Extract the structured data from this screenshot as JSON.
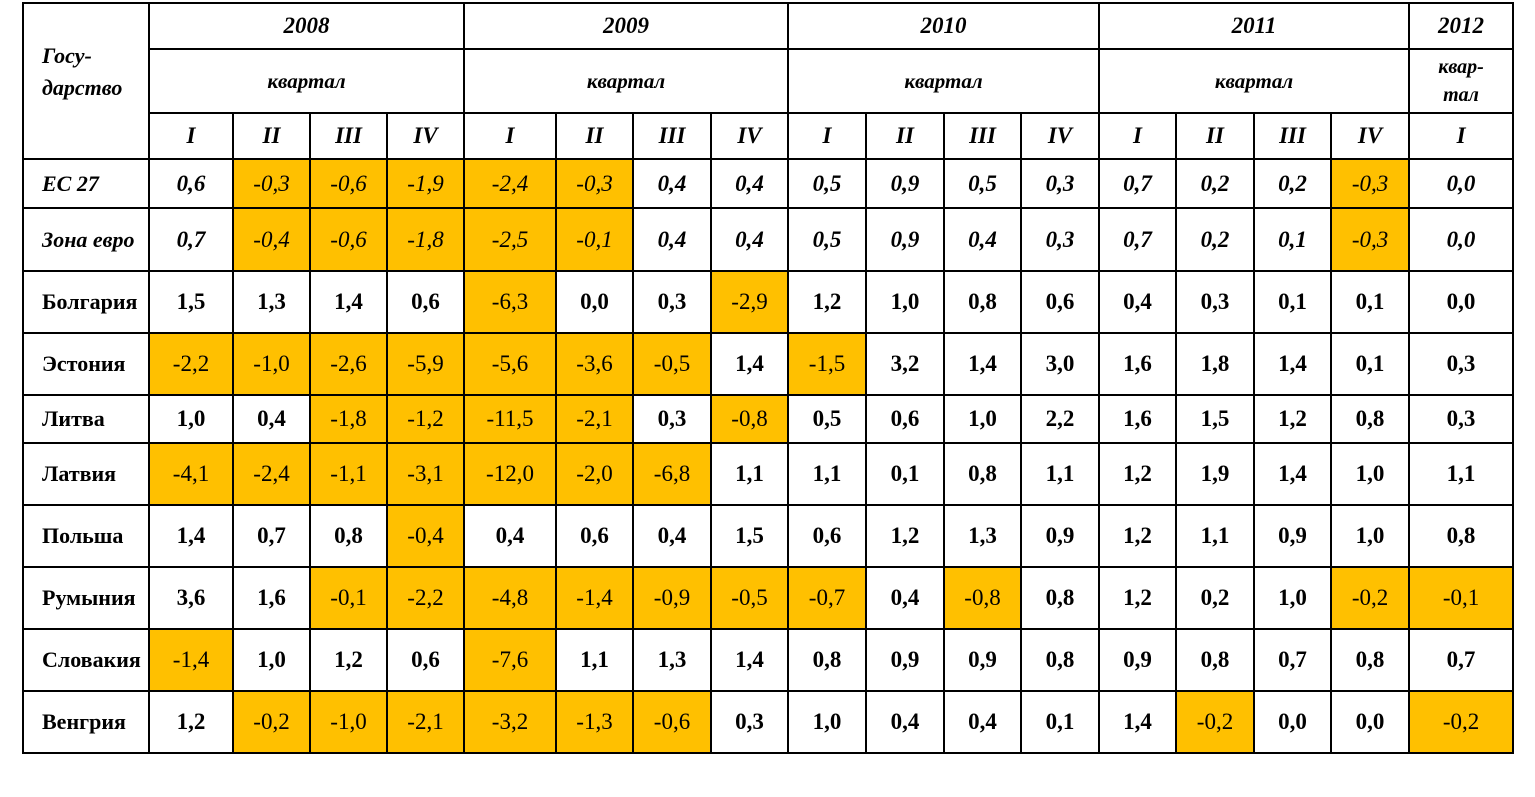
{
  "header": {
    "state_label": "Госу-дарство",
    "quarter_label": "квартал",
    "quarter_label_short": "квар-тал",
    "years": [
      {
        "year": "2008",
        "quarters": [
          "I",
          "II",
          "III",
          "IV"
        ]
      },
      {
        "year": "2009",
        "quarters": [
          "I",
          "II",
          "III",
          "IV"
        ]
      },
      {
        "year": "2010",
        "quarters": [
          "I",
          "II",
          "III",
          "IV"
        ]
      },
      {
        "year": "2011",
        "quarters": [
          "I",
          "II",
          "III",
          "IV"
        ]
      },
      {
        "year": "2012",
        "quarters": [
          "I"
        ]
      }
    ]
  },
  "colors": {
    "negative_highlight": "#FFC000",
    "border": "#000000"
  },
  "rows": [
    {
      "country": "ЕС 27",
      "italic": true,
      "values": [
        "0,6",
        "-0,3",
        "-0,6",
        "-1,9",
        "-2,4",
        "-0,3",
        "0,4",
        "0,4",
        "0,5",
        "0,9",
        "0,5",
        "0,3",
        "0,7",
        "0,2",
        "0,2",
        "-0,3",
        "0,0"
      ]
    },
    {
      "country": "Зона евро",
      "italic": true,
      "values": [
        "0,7",
        "-0,4",
        "-0,6",
        "-1,8",
        "-2,5",
        "-0,1",
        "0,4",
        "0,4",
        "0,5",
        "0,9",
        "0,4",
        "0,3",
        "0,7",
        "0,2",
        "0,1",
        "-0,3",
        "0,0"
      ]
    },
    {
      "country": "Болгария",
      "italic": false,
      "values": [
        "1,5",
        "1,3",
        "1,4",
        "0,6",
        "-6,3",
        "0,0",
        "0,3",
        "-2,9",
        "1,2",
        "1,0",
        "0,8",
        "0,6",
        "0,4",
        "0,3",
        "0,1",
        "0,1",
        "0,0"
      ]
    },
    {
      "country": "Эстония",
      "italic": false,
      "values": [
        "-2,2",
        "-1,0",
        "-2,6",
        "-5,9",
        "-5,6",
        "-3,6",
        "-0,5",
        "1,4",
        "-1,5",
        "3,2",
        "1,4",
        "3,0",
        "1,6",
        "1,8",
        "1,4",
        "0,1",
        "0,3"
      ]
    },
    {
      "country": "Литва",
      "italic": false,
      "values": [
        "1,0",
        "0,4",
        "-1,8",
        "-1,2",
        "-11,5",
        "-2,1",
        "0,3",
        "-0,8",
        "0,5",
        "0,6",
        "1,0",
        "2,2",
        "1,6",
        "1,5",
        "1,2",
        "0,8",
        "0,3"
      ]
    },
    {
      "country": "Латвия",
      "italic": false,
      "values": [
        "-4,1",
        "-2,4",
        "-1,1",
        "-3,1",
        "-12,0",
        "-2,0",
        "-6,8",
        "1,1",
        "1,1",
        "0,1",
        "0,8",
        "1,1",
        "1,2",
        "1,9",
        "1,4",
        "1,0",
        "1,1"
      ]
    },
    {
      "country": "Польша",
      "italic": false,
      "values": [
        "1,4",
        "0,7",
        "0,8",
        "-0,4",
        "0,4",
        "0,6",
        "0,4",
        "1,5",
        "0,6",
        "1,2",
        "1,3",
        "0,9",
        "1,2",
        "1,1",
        "0,9",
        "1,0",
        "0,8"
      ]
    },
    {
      "country": "Румыния",
      "italic": false,
      "values": [
        "3,6",
        "1,6",
        "-0,1",
        "-2,2",
        "-4,8",
        "-1,4",
        "-0,9",
        "-0,5",
        "-0,7",
        "0,4",
        "-0,8",
        "0,8",
        "1,2",
        "0,2",
        "1,0",
        "-0,2",
        "-0,1"
      ]
    },
    {
      "country": "Словакия",
      "italic": false,
      "values": [
        "-1,4",
        "1,0",
        "1,2",
        "0,6",
        "-7,6",
        "1,1",
        "1,3",
        "1,4",
        "0,8",
        "0,9",
        "0,9",
        "0,8",
        "0,9",
        "0,8",
        "0,7",
        "0,8",
        "0,7"
      ]
    },
    {
      "country": "Венгрия",
      "italic": false,
      "values": [
        "1,2",
        "-0,2",
        "-1,0",
        "-2,1",
        "-3,2",
        "-1,3",
        "-0,6",
        "0,3",
        "1,0",
        "0,4",
        "0,4",
        "0,1",
        "1,4",
        "-0,2",
        "0,0",
        "0,0",
        "-0,2"
      ]
    }
  ]
}
